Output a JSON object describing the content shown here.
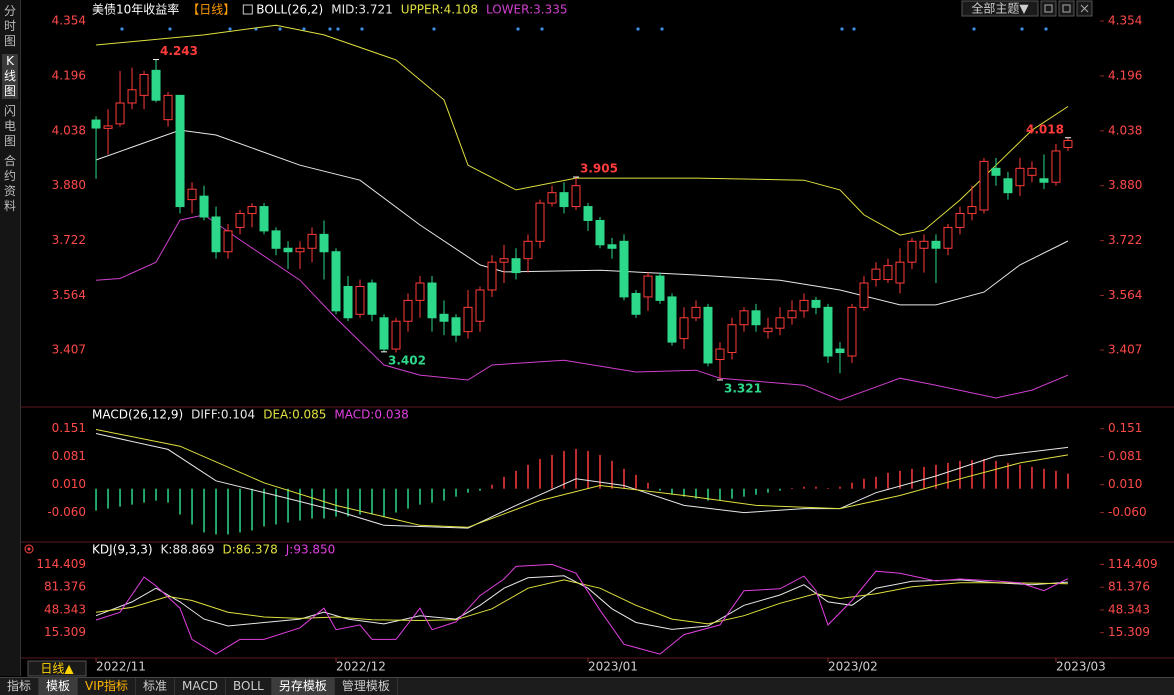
{
  "sidebar_tabs": [
    "分时图",
    "K线图",
    "闪电图",
    "合约资料"
  ],
  "toolbar": {
    "theme_button": "全部主题▼"
  },
  "period_label": "日线▲",
  "bottom_tabs": [
    "指标",
    "模板",
    "VIP指标",
    "标准",
    "MACD",
    "BOLL",
    "另存模板",
    "管理模板"
  ],
  "chart_data": [
    {
      "type": "candlestick",
      "title": "美债10年收益率",
      "subtitle": "【日线】",
      "indicator": "BOLL(26,2)",
      "up_color": "#ff3b3b",
      "down_color": "#2ed88a",
      "xlim": [
        -0.67,
        83.67
      ],
      "ylim": [
        3.249,
        4.4
      ],
      "yticks": [
        4.354,
        4.196,
        4.038,
        {
          "value": 3.88,
          "label": "3.880"
        },
        3.722,
        3.564,
        3.407
      ],
      "x": [
        0,
        1,
        2,
        3,
        4,
        5,
        6,
        7,
        8,
        9,
        10,
        11,
        12,
        13,
        14,
        15,
        16,
        17,
        18,
        19,
        20,
        21,
        22,
        23,
        24,
        25,
        26,
        27,
        28,
        29,
        30,
        31,
        32,
        33,
        34,
        35,
        36,
        37,
        38,
        39,
        40,
        41,
        42,
        43,
        44,
        45,
        46,
        47,
        48,
        49,
        50,
        51,
        52,
        53,
        54,
        55,
        56,
        57,
        58,
        59,
        60,
        61,
        62,
        63,
        64,
        65,
        66,
        67,
        68,
        69,
        70,
        71,
        72,
        73,
        74,
        75,
        76,
        77,
        78,
        79,
        80,
        81
      ],
      "open": [
        4.069,
        4.045,
        4.058,
        4.118,
        4.14,
        4.212,
        4.07,
        4.14,
        3.84,
        3.85,
        3.79,
        3.69,
        3.76,
        3.8,
        3.82,
        3.75,
        3.7,
        3.69,
        3.7,
        3.74,
        3.69,
        3.59,
        3.51,
        3.6,
        3.5,
        3.41,
        3.49,
        3.55,
        3.6,
        3.51,
        3.5,
        3.46,
        3.49,
        3.58,
        3.66,
        3.67,
        3.67,
        3.72,
        3.83,
        3.86,
        3.82,
        3.82,
        3.78,
        3.71,
        3.72,
        3.57,
        3.56,
        3.62,
        3.56,
        3.44,
        3.5,
        3.53,
        3.38,
        3.4,
        3.48,
        3.52,
        3.46,
        3.47,
        3.5,
        3.52,
        3.55,
        3.53,
        3.41,
        3.39,
        3.53,
        3.61,
        3.61,
        3.6,
        3.66,
        3.7,
        3.72,
        3.7,
        3.76,
        3.8,
        3.81,
        3.93,
        3.9,
        3.88,
        3.91,
        3.9,
        3.89,
        3.99
      ],
      "high": [
        4.08,
        4.1,
        4.21,
        4.22,
        4.21,
        4.243,
        4.15,
        4.14,
        3.89,
        3.88,
        3.82,
        3.77,
        3.81,
        3.83,
        3.83,
        3.76,
        3.72,
        3.72,
        3.76,
        3.78,
        3.7,
        3.62,
        3.61,
        3.61,
        3.51,
        3.5,
        3.57,
        3.62,
        3.62,
        3.55,
        3.51,
        3.58,
        3.59,
        3.68,
        3.71,
        3.7,
        3.74,
        3.84,
        3.88,
        3.89,
        3.905,
        3.83,
        3.79,
        3.73,
        3.74,
        3.58,
        3.63,
        3.63,
        3.57,
        3.53,
        3.55,
        3.54,
        3.43,
        3.5,
        3.53,
        3.54,
        3.5,
        3.53,
        3.55,
        3.57,
        3.56,
        3.54,
        3.43,
        3.54,
        3.62,
        3.66,
        3.67,
        3.7,
        3.73,
        3.74,
        3.74,
        3.77,
        3.82,
        3.88,
        3.96,
        3.96,
        3.92,
        3.96,
        3.95,
        3.97,
        4.0,
        4.018
      ],
      "low": [
        3.9,
        3.97,
        4.05,
        4.1,
        4.1,
        4.12,
        4.05,
        3.8,
        3.8,
        3.78,
        3.67,
        3.67,
        3.74,
        3.76,
        3.74,
        3.68,
        3.64,
        3.64,
        3.66,
        3.61,
        3.51,
        3.49,
        3.5,
        3.49,
        3.402,
        3.4,
        3.46,
        3.5,
        3.46,
        3.45,
        3.43,
        3.44,
        3.46,
        3.56,
        3.6,
        3.61,
        3.63,
        3.7,
        3.82,
        3.8,
        3.81,
        3.75,
        3.7,
        3.67,
        3.55,
        3.5,
        3.52,
        3.54,
        3.42,
        3.41,
        3.49,
        3.36,
        3.321,
        3.38,
        3.46,
        3.46,
        3.44,
        3.45,
        3.48,
        3.5,
        3.51,
        3.37,
        3.34,
        3.37,
        3.52,
        3.59,
        3.6,
        3.57,
        3.64,
        3.63,
        3.6,
        3.68,
        3.74,
        3.78,
        3.8,
        3.88,
        3.84,
        3.85,
        3.89,
        3.87,
        3.88,
        3.98
      ],
      "close": [
        4.046,
        4.052,
        4.118,
        4.156,
        4.2,
        4.126,
        4.14,
        3.82,
        3.87,
        3.79,
        3.69,
        3.75,
        3.8,
        3.82,
        3.75,
        3.7,
        3.69,
        3.7,
        3.74,
        3.69,
        3.52,
        3.5,
        3.59,
        3.51,
        3.41,
        3.49,
        3.55,
        3.6,
        3.5,
        3.49,
        3.45,
        3.53,
        3.58,
        3.66,
        3.67,
        3.63,
        3.72,
        3.83,
        3.86,
        3.82,
        3.88,
        3.78,
        3.71,
        3.7,
        3.56,
        3.51,
        3.62,
        3.55,
        3.43,
        3.5,
        3.53,
        3.37,
        3.41,
        3.48,
        3.52,
        3.48,
        3.47,
        3.5,
        3.52,
        3.55,
        3.53,
        3.39,
        3.4,
        3.53,
        3.6,
        3.64,
        3.65,
        3.66,
        3.72,
        3.72,
        3.7,
        3.76,
        3.8,
        3.82,
        3.95,
        3.91,
        3.86,
        3.93,
        3.93,
        3.89,
        3.98,
        4.01
      ],
      "series": [
        {
          "name": "MID:3.721",
          "color": "#e8e8e8",
          "x": [
            0,
            7,
            10,
            17,
            22,
            27,
            32,
            34,
            42,
            50,
            57,
            62,
            67,
            70,
            74,
            77,
            81
          ],
          "values": [
            3.954,
            4.04,
            4.026,
            3.939,
            3.896,
            3.767,
            3.652,
            3.632,
            3.637,
            3.623,
            3.608,
            3.58,
            3.537,
            3.537,
            3.574,
            3.652,
            3.721
          ]
        },
        {
          "name": "UPPER:4.108",
          "color": "#e0e040",
          "x": [
            0,
            9,
            15,
            19,
            25,
            29,
            31,
            35,
            40,
            50,
            59,
            62,
            64,
            67,
            69,
            72,
            75,
            78,
            81
          ],
          "values": [
            4.285,
            4.314,
            4.342,
            4.314,
            4.242,
            4.127,
            3.939,
            3.868,
            3.902,
            3.902,
            3.896,
            3.868,
            3.796,
            3.738,
            3.752,
            3.839,
            3.939,
            4.04,
            4.108
          ]
        },
        {
          "name": "LOWER:3.335",
          "color": "#d040d0",
          "x": [
            0,
            2,
            5,
            7,
            9,
            12,
            17,
            20,
            24,
            27,
            31,
            33,
            39,
            45,
            50,
            52,
            59,
            62,
            67,
            70,
            75,
            78,
            81
          ],
          "values": [
            3.608,
            3.613,
            3.66,
            3.781,
            3.796,
            3.724,
            3.608,
            3.499,
            3.364,
            3.335,
            3.321,
            3.364,
            3.378,
            3.344,
            3.349,
            3.326,
            3.306,
            3.263,
            3.326,
            3.306,
            3.269,
            3.292,
            3.335
          ]
        }
      ],
      "annotations": [
        {
          "x": 5,
          "y": 4.243
        },
        {
          "x": 24,
          "y": 3.402
        },
        {
          "x": 40,
          "y": 3.905
        },
        {
          "x": 52,
          "y": 3.321
        },
        {
          "x": 81,
          "y": 4.018
        }
      ]
    },
    {
      "type": "bar",
      "title": "MACD(26,12,9)",
      "name": "MACD:0.038",
      "name_color": "#e040e0",
      "up_color": "#ff3b3b",
      "down_color": "#2ed88a",
      "xlim": [
        -0.67,
        83.67
      ],
      "ylim": [
        -0.129,
        0.198
      ],
      "yticks": [
        0.151,
        0.081,
        {
          "value": 0.01,
          "label": "0.010"
        },
        {
          "value": -0.06,
          "label": "-0.060"
        }
      ],
      "x": [
        0,
        1,
        2,
        3,
        4,
        5,
        6,
        7,
        8,
        9,
        10,
        11,
        12,
        13,
        14,
        15,
        16,
        17,
        18,
        19,
        20,
        21,
        22,
        23,
        24,
        25,
        26,
        27,
        28,
        29,
        30,
        31,
        32,
        33,
        34,
        35,
        36,
        37,
        38,
        39,
        40,
        41,
        42,
        43,
        44,
        45,
        46,
        47,
        48,
        49,
        50,
        51,
        52,
        53,
        54,
        55,
        56,
        57,
        58,
        59,
        60,
        61,
        62,
        63,
        64,
        65,
        66,
        67,
        68,
        69,
        70,
        71,
        72,
        73,
        74,
        75,
        76,
        77,
        78,
        79,
        80,
        81
      ],
      "values": [
        -0.055,
        -0.05,
        -0.045,
        -0.04,
        -0.035,
        -0.03,
        -0.035,
        -0.065,
        -0.09,
        -0.11,
        -0.115,
        -0.115,
        -0.11,
        -0.105,
        -0.095,
        -0.09,
        -0.085,
        -0.08,
        -0.075,
        -0.075,
        -0.07,
        -0.07,
        -0.065,
        -0.065,
        -0.07,
        -0.06,
        -0.05,
        -0.04,
        -0.035,
        -0.03,
        -0.02,
        -0.01,
        -0.005,
        0.01,
        0.03,
        0.045,
        0.06,
        0.075,
        0.085,
        0.095,
        0.1,
        0.095,
        0.085,
        0.07,
        0.05,
        0.035,
        0.015,
        -0.005,
        -0.015,
        -0.02,
        -0.025,
        -0.03,
        -0.03,
        -0.025,
        -0.02,
        -0.015,
        -0.01,
        -0.005,
        0.002,
        0.005,
        0.005,
        0.002,
        0.005,
        0.015,
        0.025,
        0.03,
        0.04,
        0.045,
        0.05,
        0.055,
        0.06,
        0.065,
        0.07,
        0.072,
        0.075,
        0.07,
        0.065,
        0.06,
        0.055,
        0.05,
        0.045,
        0.038
      ],
      "series": [
        {
          "name": "DIFF:0.104",
          "color": "#e8e8e8",
          "x": [
            0,
            6,
            10,
            15,
            20,
            24,
            31,
            35,
            40,
            44,
            49,
            54,
            59,
            62,
            65,
            70,
            75,
            81
          ],
          "values": [
            0.139,
            0.099,
            0.02,
            -0.017,
            -0.055,
            -0.092,
            -0.099,
            -0.042,
            0.025,
            0.008,
            -0.042,
            -0.06,
            -0.05,
            -0.05,
            -0.01,
            0.032,
            0.082,
            0.104
          ]
        },
        {
          "name": "DEA:0.085",
          "color": "#e0e040",
          "x": [
            0,
            7,
            14,
            20,
            27,
            31,
            37,
            42,
            49,
            55,
            62,
            67,
            72,
            77,
            81
          ],
          "values": [
            0.149,
            0.107,
            0.015,
            -0.042,
            -0.092,
            -0.097,
            -0.03,
            0.008,
            -0.017,
            -0.042,
            -0.05,
            -0.017,
            0.025,
            0.065,
            0.085
          ]
        }
      ]
    },
    {
      "type": "line",
      "title": "KDJ(9,3,3)",
      "xlim": [
        -0.67,
        83.67
      ],
      "ylim": [
        -20.14,
        142.77
      ],
      "yticks": [
        114.409,
        81.376,
        48.343,
        15.309
      ],
      "xticks": [
        {
          "value": 0,
          "label": "2022/11"
        },
        {
          "value": 20,
          "label": "2022/12"
        },
        {
          "value": 41,
          "label": "2023/01"
        },
        {
          "value": 61,
          "label": "2023/02"
        },
        {
          "value": 80,
          "label": "2023/03"
        }
      ],
      "series": [
        {
          "name": "K:88.869",
          "color": "#e8e8e8",
          "x": [
            0,
            3,
            5,
            7,
            9,
            11,
            14,
            17,
            19,
            21,
            24,
            27,
            30,
            32,
            34,
            36,
            39,
            41,
            43,
            45,
            48,
            51,
            54,
            57,
            59,
            61,
            63,
            65,
            68,
            72,
            75,
            78,
            81
          ],
          "values": [
            40,
            60,
            80,
            60,
            35,
            25,
            30,
            35,
            45,
            35,
            28,
            40,
            35,
            55,
            80,
            95,
            98,
            80,
            50,
            30,
            20,
            25,
            55,
            70,
            85,
            60,
            55,
            80,
            90,
            92,
            88,
            85,
            88.869
          ]
        },
        {
          "name": "D:86.378",
          "color": "#e0e040",
          "x": [
            0,
            3,
            6,
            8,
            11,
            14,
            17,
            20,
            23,
            27,
            30,
            33,
            36,
            39,
            42,
            45,
            48,
            51,
            54,
            57,
            60,
            62,
            65,
            68,
            72,
            76,
            81
          ],
          "values": [
            45,
            52,
            68,
            62,
            45,
            38,
            36,
            38,
            34,
            33,
            34,
            50,
            80,
            92,
            80,
            55,
            35,
            28,
            40,
            58,
            72,
            65,
            72,
            82,
            88,
            88,
            86.378
          ]
        },
        {
          "name": "J:93.850",
          "color": "#e040e0",
          "x": [
            0,
            2,
            4,
            5,
            7,
            8,
            10,
            12,
            14,
            17,
            19,
            20,
            22,
            23,
            25,
            27,
            28,
            30,
            32,
            34,
            35,
            38,
            40,
            42,
            44,
            47,
            49,
            52,
            54,
            57,
            59,
            60,
            61,
            63,
            65,
            67,
            70,
            72,
            75,
            77,
            79,
            81
          ],
          "values": [
            33.7,
            44.9,
            96.1,
            83.3,
            50.8,
            5.4,
            -15.9,
            5.4,
            5.4,
            22.4,
            50.8,
            19.6,
            26.6,
            5.4,
            5.4,
            50.8,
            19.6,
            30.9,
            69.2,
            93.3,
            111.7,
            114.5,
            101.8,
            47.9,
            -1.7,
            -15.9,
            12.5,
            26.6,
            76.3,
            79.1,
            97.5,
            76.3,
            26.6,
            62.1,
            104.6,
            101.8,
            90.4,
            93.3,
            90.4,
            87.6,
            76.3,
            93.85
          ]
        }
      ]
    }
  ]
}
